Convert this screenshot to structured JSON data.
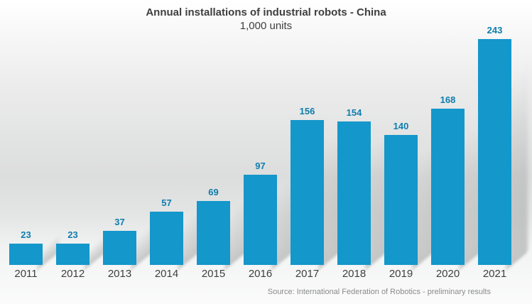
{
  "header": {
    "title": "Annual installations of industrial robots - China",
    "subtitle": "1,000 units"
  },
  "footer": {
    "source": "Source: International Federation of Robotics - preliminary results"
  },
  "colors": {
    "bar": "#1497cb",
    "value_label": "#0e7dad",
    "axis_label": "#3f3f3f",
    "title": "#3f3f3f",
    "source": "#8a8a8a"
  },
  "chart_data": {
    "type": "bar",
    "title": "Annual installations of industrial robots - China",
    "subtitle": "1,000 units",
    "categories": [
      "2011",
      "2012",
      "2013",
      "2014",
      "2015",
      "2016",
      "2017",
      "2018",
      "2019",
      "2020",
      "2021"
    ],
    "values": [
      23,
      23,
      37,
      57,
      69,
      97,
      156,
      154,
      140,
      168,
      243
    ],
    "xlabel": "",
    "ylabel": "1,000 units",
    "ylim": [
      0,
      243
    ],
    "grid": false,
    "legend": false,
    "value_labels": true,
    "bar_effect": "perspective-shadow-upper-right"
  }
}
